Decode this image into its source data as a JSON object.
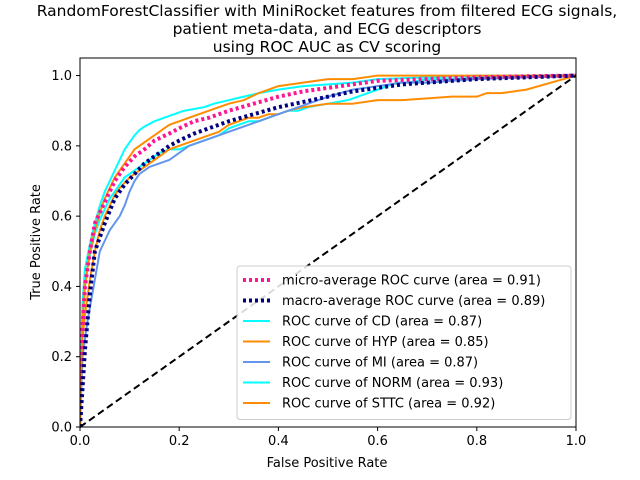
{
  "chart_data": {
    "type": "line",
    "title_lines": [
      "RandomForestClassifier with MiniRocket features from filtered ECG signals,",
      "patient meta-data, and ECG descriptors",
      "using ROC AUC as CV scoring"
    ],
    "xlabel": "False Positive Rate",
    "ylabel": "True Positive Rate",
    "xlim": [
      0.0,
      1.0
    ],
    "ylim": [
      0.0,
      1.05
    ],
    "xticks": [
      "0.0",
      "0.2",
      "0.4",
      "0.6",
      "0.8",
      "1.0"
    ],
    "yticks": [
      "0.0",
      "0.2",
      "0.4",
      "0.6",
      "0.8",
      "1.0"
    ],
    "grid": false,
    "legend_position": "lower-right",
    "series": [
      {
        "name": "micro-average ROC curve (area = 0.91)",
        "color": "#ff1493",
        "style": "dotted",
        "x": [
          0,
          0.005,
          0.01,
          0.02,
          0.03,
          0.05,
          0.07,
          0.09,
          0.11,
          0.13,
          0.15,
          0.18,
          0.2,
          0.23,
          0.26,
          0.3,
          0.35,
          0.4,
          0.45,
          0.5,
          0.55,
          0.6,
          0.7,
          0.8,
          0.9,
          1.0
        ],
        "y": [
          0,
          0.28,
          0.4,
          0.5,
          0.58,
          0.64,
          0.7,
          0.74,
          0.77,
          0.79,
          0.815,
          0.835,
          0.85,
          0.87,
          0.88,
          0.9,
          0.92,
          0.94,
          0.955,
          0.965,
          0.975,
          0.985,
          0.99,
          0.995,
          0.998,
          1.0
        ]
      },
      {
        "name": "macro-average ROC curve (area = 0.89)",
        "color": "#000080",
        "style": "dotted",
        "x": [
          0,
          0.01,
          0.02,
          0.03,
          0.05,
          0.07,
          0.09,
          0.11,
          0.13,
          0.15,
          0.18,
          0.2,
          0.23,
          0.26,
          0.3,
          0.35,
          0.4,
          0.45,
          0.5,
          0.55,
          0.6,
          0.65,
          0.7,
          0.8,
          0.9,
          1.0
        ],
        "y": [
          0,
          0.22,
          0.38,
          0.5,
          0.58,
          0.65,
          0.69,
          0.72,
          0.75,
          0.77,
          0.8,
          0.815,
          0.835,
          0.85,
          0.87,
          0.89,
          0.91,
          0.925,
          0.94,
          0.955,
          0.965,
          0.975,
          0.98,
          0.99,
          0.995,
          1.0
        ]
      },
      {
        "name": "ROC curve of CD (area = 0.87)",
        "color": "#00ffff",
        "style": "solid",
        "x": [
          0,
          0.005,
          0.01,
          0.015,
          0.02,
          0.025,
          0.03,
          0.04,
          0.05,
          0.06,
          0.07,
          0.08,
          0.09,
          0.1,
          0.12,
          0.14,
          0.16,
          0.18,
          0.2,
          0.22,
          0.24,
          0.26,
          0.28,
          0.3,
          0.32,
          0.34,
          0.36,
          0.38,
          0.4,
          0.42,
          0.44,
          0.46,
          0.5,
          0.54,
          0.58,
          0.6,
          0.62,
          0.64,
          0.66,
          0.7,
          0.75,
          0.8,
          0.85,
          0.9,
          0.95,
          1.0
        ],
        "y": [
          0,
          0.3,
          0.4,
          0.45,
          0.49,
          0.52,
          0.55,
          0.59,
          0.62,
          0.65,
          0.67,
          0.69,
          0.71,
          0.72,
          0.74,
          0.76,
          0.78,
          0.79,
          0.79,
          0.8,
          0.81,
          0.82,
          0.83,
          0.85,
          0.86,
          0.87,
          0.87,
          0.88,
          0.89,
          0.9,
          0.9,
          0.91,
          0.92,
          0.93,
          0.95,
          0.96,
          0.97,
          0.98,
          0.98,
          0.99,
          0.99,
          0.995,
          1.0,
          1.0,
          1.0,
          1.0
        ]
      },
      {
        "name": "ROC curve of HYP (area = 0.85)",
        "color": "#ff8c00",
        "style": "solid",
        "x": [
          0,
          0.005,
          0.01,
          0.02,
          0.03,
          0.04,
          0.05,
          0.06,
          0.07,
          0.08,
          0.1,
          0.12,
          0.14,
          0.16,
          0.18,
          0.2,
          0.22,
          0.24,
          0.26,
          0.28,
          0.3,
          0.32,
          0.34,
          0.36,
          0.38,
          0.4,
          0.42,
          0.45,
          0.5,
          0.55,
          0.6,
          0.65,
          0.7,
          0.75,
          0.8,
          0.82,
          0.85,
          0.9,
          0.95,
          1.0
        ],
        "y": [
          0,
          0.25,
          0.32,
          0.42,
          0.5,
          0.56,
          0.6,
          0.63,
          0.66,
          0.68,
          0.71,
          0.73,
          0.75,
          0.77,
          0.79,
          0.8,
          0.81,
          0.82,
          0.83,
          0.84,
          0.86,
          0.87,
          0.88,
          0.88,
          0.89,
          0.89,
          0.9,
          0.91,
          0.92,
          0.92,
          0.93,
          0.93,
          0.935,
          0.94,
          0.94,
          0.95,
          0.95,
          0.96,
          0.98,
          1.0
        ]
      },
      {
        "name": "ROC curve of MI (area = 0.87)",
        "color": "#6495ed",
        "style": "solid",
        "x": [
          0,
          0.005,
          0.01,
          0.015,
          0.02,
          0.03,
          0.04,
          0.05,
          0.06,
          0.07,
          0.08,
          0.09,
          0.1,
          0.11,
          0.12,
          0.13,
          0.14,
          0.16,
          0.18,
          0.2,
          0.22,
          0.24,
          0.26,
          0.28,
          0.3,
          0.32,
          0.34,
          0.36,
          0.38,
          0.4,
          0.42,
          0.44,
          0.46,
          0.48,
          0.5,
          0.55,
          0.6,
          0.65,
          0.7,
          0.8,
          0.9,
          1.0
        ],
        "y": [
          0,
          0.2,
          0.25,
          0.3,
          0.34,
          0.42,
          0.5,
          0.53,
          0.56,
          0.58,
          0.6,
          0.63,
          0.67,
          0.7,
          0.72,
          0.73,
          0.74,
          0.75,
          0.76,
          0.78,
          0.8,
          0.81,
          0.82,
          0.83,
          0.84,
          0.85,
          0.86,
          0.87,
          0.88,
          0.89,
          0.9,
          0.91,
          0.92,
          0.93,
          0.94,
          0.96,
          0.97,
          0.98,
          0.98,
          0.99,
          0.995,
          1.0
        ]
      },
      {
        "name": "ROC curve of NORM (area = 0.93)",
        "color": "#00ffff",
        "style": "solid",
        "x": [
          0,
          0.005,
          0.01,
          0.02,
          0.03,
          0.04,
          0.05,
          0.06,
          0.07,
          0.08,
          0.09,
          0.1,
          0.11,
          0.12,
          0.13,
          0.15,
          0.17,
          0.19,
          0.21,
          0.23,
          0.25,
          0.27,
          0.3,
          0.33,
          0.36,
          0.4,
          0.45,
          0.5,
          0.55,
          0.6,
          0.7,
          0.8,
          0.9,
          1.0
        ],
        "y": [
          0,
          0.35,
          0.45,
          0.52,
          0.58,
          0.63,
          0.67,
          0.7,
          0.73,
          0.76,
          0.79,
          0.81,
          0.83,
          0.845,
          0.855,
          0.87,
          0.88,
          0.89,
          0.9,
          0.905,
          0.91,
          0.92,
          0.93,
          0.94,
          0.95,
          0.96,
          0.97,
          0.975,
          0.98,
          0.99,
          0.995,
          1.0,
          1.0,
          1.0
        ]
      },
      {
        "name": "ROC curve of STTC (area = 0.92)",
        "color": "#ff8c00",
        "style": "solid",
        "x": [
          0,
          0.005,
          0.01,
          0.02,
          0.03,
          0.04,
          0.05,
          0.06,
          0.07,
          0.08,
          0.09,
          0.1,
          0.11,
          0.12,
          0.14,
          0.16,
          0.18,
          0.2,
          0.22,
          0.24,
          0.26,
          0.28,
          0.3,
          0.33,
          0.36,
          0.4,
          0.45,
          0.5,
          0.55,
          0.6,
          0.7,
          0.8,
          0.9,
          1.0
        ],
        "y": [
          0,
          0.3,
          0.4,
          0.5,
          0.56,
          0.61,
          0.65,
          0.68,
          0.71,
          0.73,
          0.75,
          0.77,
          0.79,
          0.8,
          0.82,
          0.84,
          0.86,
          0.87,
          0.88,
          0.89,
          0.9,
          0.91,
          0.92,
          0.93,
          0.95,
          0.97,
          0.98,
          0.99,
          0.99,
          1.0,
          1.0,
          1.0,
          1.0,
          1.0
        ]
      }
    ],
    "reference_line": {
      "x": [
        0,
        1
      ],
      "y": [
        0,
        1
      ],
      "color": "#000000",
      "style": "dashed"
    }
  }
}
